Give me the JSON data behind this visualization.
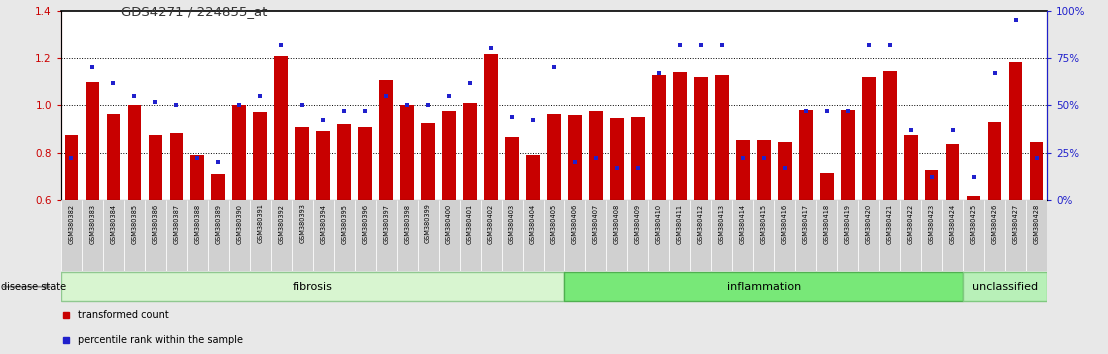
{
  "title": "GDS4271 / 224855_at",
  "samples": [
    "GSM380382",
    "GSM380383",
    "GSM380384",
    "GSM380385",
    "GSM380386",
    "GSM380387",
    "GSM380388",
    "GSM380389",
    "GSM380390",
    "GSM380391",
    "GSM380392",
    "GSM380393",
    "GSM380394",
    "GSM380395",
    "GSM380396",
    "GSM380397",
    "GSM380398",
    "GSM380399",
    "GSM380400",
    "GSM380401",
    "GSM380402",
    "GSM380403",
    "GSM380404",
    "GSM380405",
    "GSM380406",
    "GSM380407",
    "GSM380408",
    "GSM380409",
    "GSM380410",
    "GSM380411",
    "GSM380412",
    "GSM380413",
    "GSM380414",
    "GSM380415",
    "GSM380416",
    "GSM380417",
    "GSM380418",
    "GSM380419",
    "GSM380420",
    "GSM380421",
    "GSM380422",
    "GSM380423",
    "GSM380424",
    "GSM380425",
    "GSM380426",
    "GSM380427",
    "GSM380428"
  ],
  "bar_heights": [
    0.875,
    1.1,
    0.965,
    1.0,
    0.875,
    0.885,
    0.79,
    0.71,
    1.0,
    0.97,
    1.21,
    0.91,
    0.89,
    0.92,
    0.91,
    1.105,
    1.0,
    0.925,
    0.975,
    1.01,
    1.215,
    0.865,
    0.79,
    0.965,
    0.96,
    0.975,
    0.945,
    0.95,
    1.13,
    1.14,
    1.12,
    1.13,
    0.855,
    0.855,
    0.845,
    0.98,
    0.715,
    0.98,
    1.12,
    1.145,
    0.875,
    0.725,
    0.835,
    0.615,
    0.93,
    1.185,
    0.845
  ],
  "percentile_ranks": [
    22,
    70,
    62,
    55,
    52,
    50,
    22,
    20,
    50,
    55,
    82,
    50,
    42,
    47,
    47,
    55,
    50,
    50,
    55,
    62,
    80,
    44,
    42,
    70,
    20,
    22,
    17,
    17,
    67,
    82,
    82,
    82,
    22,
    22,
    17,
    47,
    47,
    47,
    82,
    82,
    37,
    12,
    37,
    12,
    67,
    95,
    22
  ],
  "groups": [
    {
      "name": "fibrosis",
      "start": 0,
      "end": 23,
      "facecolor": "#d8f5d0",
      "edgecolor": "#90c890"
    },
    {
      "name": "inflammation",
      "start": 24,
      "end": 42,
      "facecolor": "#78e878",
      "edgecolor": "#50b050"
    },
    {
      "name": "unclassified",
      "start": 43,
      "end": 46,
      "facecolor": "#b8f0b8",
      "edgecolor": "#80c880"
    }
  ],
  "ylim_left": [
    0.6,
    1.4
  ],
  "ylim_right": [
    0,
    100
  ],
  "yticks_left": [
    0.6,
    0.8,
    1.0,
    1.2,
    1.4
  ],
  "yticks_right": [
    0,
    25,
    50,
    75,
    100
  ],
  "ytick_labels_right": [
    "0%",
    "25%",
    "50%",
    "75%",
    "100%"
  ],
  "hlines": [
    0.8,
    1.0,
    1.2
  ],
  "bar_color": "#c80000",
  "marker_color": "#2020cc",
  "bar_width": 0.65,
  "background_color": "#e8e8e8",
  "plot_bg_color": "#ffffff",
  "left_tick_color": "#cc0000",
  "right_tick_color": "#2020cc",
  "label_bg_color": "#d0d0d0",
  "disease_state_label": "disease state",
  "legend_items": [
    {
      "label": "transformed count",
      "color": "#c80000",
      "marker": "s"
    },
    {
      "label": "percentile rank within the sample",
      "color": "#2020cc",
      "marker": "s"
    }
  ]
}
